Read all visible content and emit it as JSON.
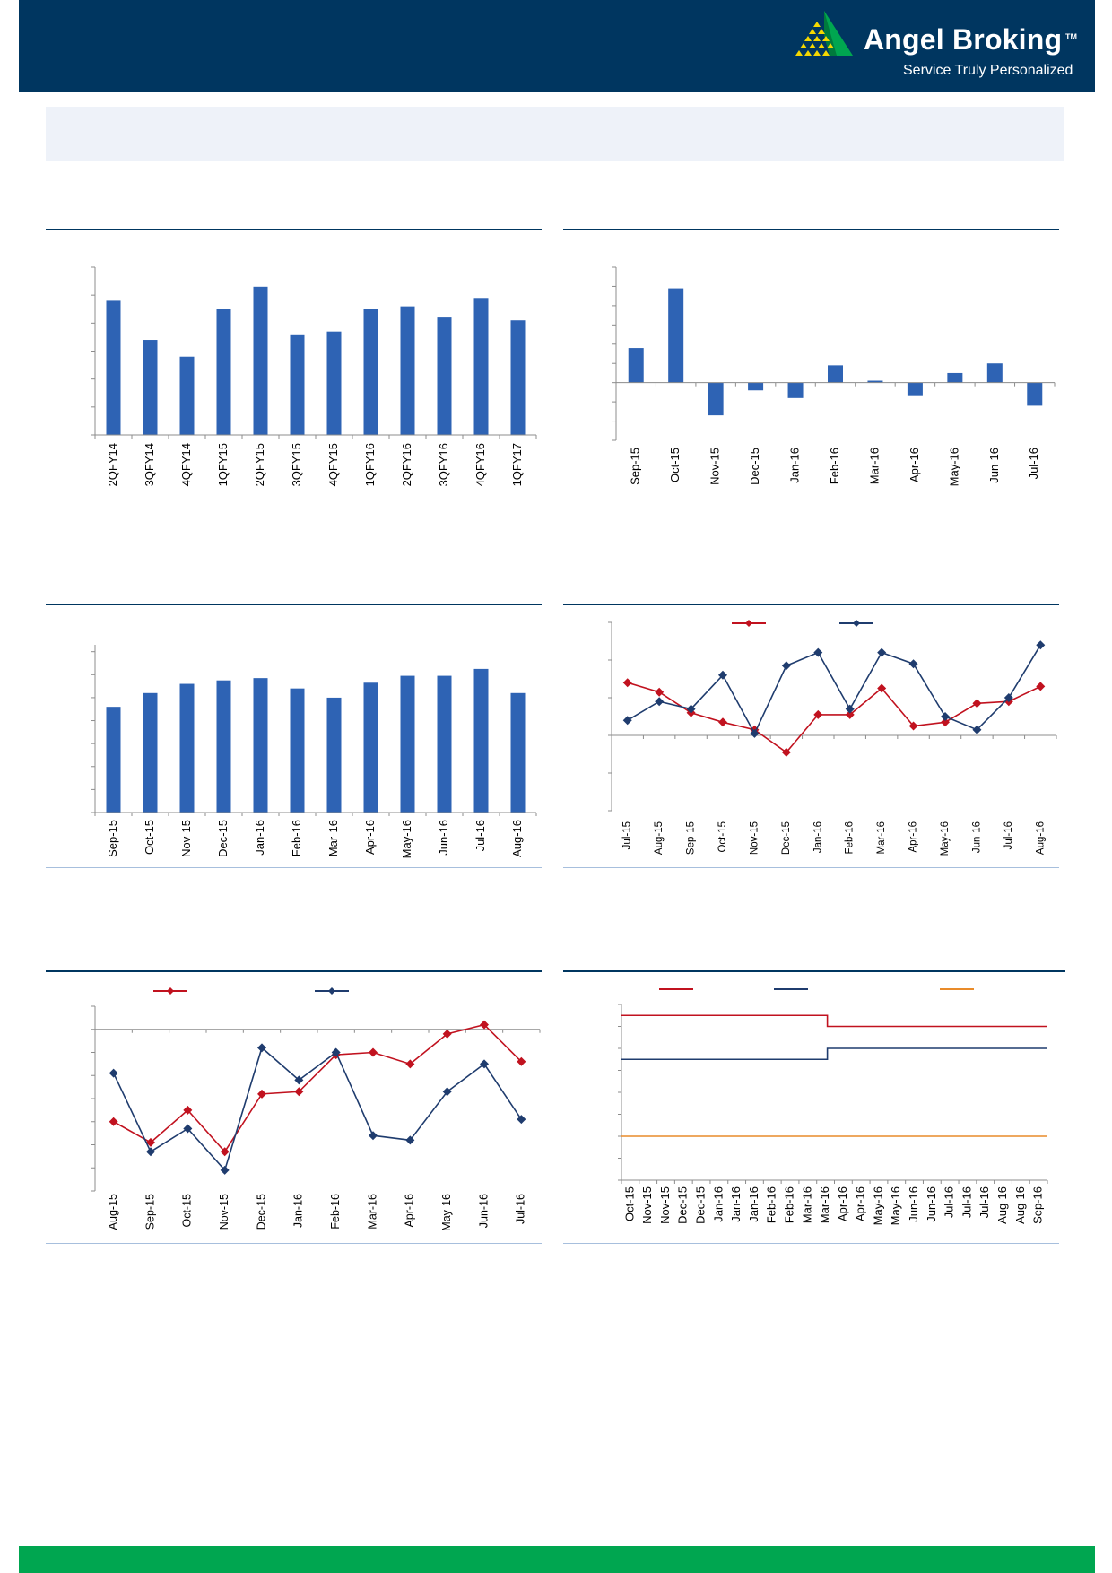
{
  "brand": {
    "name": "Angel Broking",
    "trademark": "TM",
    "tagline": "Service Truly Personalized",
    "colors": {
      "navy": "#003660",
      "green": "#00a650",
      "logo_yellow": "#f5d800",
      "logo_green": "#00a650"
    }
  },
  "colors": {
    "bar": "#2e63b4",
    "series_red": "#c1121f",
    "series_blue": "#1f3c6e",
    "series_orange": "#e98b2a",
    "panel_rule": "#003660",
    "panel_footer_rule": "#a7bfdd"
  },
  "chart_data": [
    {
      "id": "c1",
      "type": "bar",
      "categories": [
        "2QFY14",
        "3QFY14",
        "4QFY14",
        "1QFY15",
        "2QFY15",
        "3QFY15",
        "4QFY15",
        "1QFY16",
        "2QFY16",
        "3QFY16",
        "4QFY16",
        "1QFY17"
      ],
      "values": [
        4.8,
        3.4,
        2.8,
        4.5,
        5.3,
        3.6,
        3.7,
        4.5,
        4.6,
        4.2,
        4.9,
        4.1
      ],
      "ylim": [
        0,
        6
      ],
      "yticks": [
        0,
        1,
        2,
        3,
        4,
        5,
        6
      ],
      "tick_labels_shown": false,
      "grid": false
    },
    {
      "id": "c2",
      "type": "bar",
      "categories": [
        "Sep-15",
        "Oct-15",
        "Nov-15",
        "Dec-15",
        "Jan-16",
        "Feb-16",
        "Mar-16",
        "Apr-16",
        "May-16",
        "Jun-16",
        "Jul-16"
      ],
      "values": [
        1.8,
        4.9,
        -1.7,
        -0.4,
        -0.8,
        0.9,
        0.1,
        -0.7,
        0.5,
        1.0,
        -1.2
      ],
      "ylim": [
        -3,
        6
      ],
      "yticks": [
        -3,
        -2,
        -1,
        0,
        1,
        2,
        3,
        4,
        5,
        6
      ],
      "tick_labels_shown": false,
      "grid": false
    },
    {
      "id": "c3",
      "type": "bar",
      "categories": [
        "Sep-15",
        "Oct-15",
        "Nov-15",
        "Dec-15",
        "Jan-16",
        "Feb-16",
        "Mar-16",
        "Apr-16",
        "May-16",
        "Jun-16",
        "Jul-16",
        "Aug-16"
      ],
      "values": [
        4.6,
        5.2,
        5.6,
        5.75,
        5.85,
        5.4,
        5.0,
        5.65,
        5.95,
        5.95,
        6.25,
        5.2
      ],
      "ylim": [
        0,
        7.3
      ],
      "yticks": [
        0,
        1,
        2,
        3,
        4,
        5,
        6,
        7
      ],
      "tick_labels_shown": false,
      "grid": false
    },
    {
      "id": "c4",
      "type": "line",
      "x": [
        "Jul-15",
        "Aug-15",
        "Sep-15",
        "Oct-15",
        "Nov-15",
        "Dec-15",
        "Jan-16",
        "Feb-16",
        "Mar-16",
        "Apr-16",
        "May-16",
        "Jun-16",
        "Jul-16",
        "Aug-16"
      ],
      "series": [
        {
          "values": [
            2.8,
            2.3,
            1.2,
            0.7,
            0.3,
            -0.9,
            1.1,
            1.1,
            2.5,
            0.5,
            0.7,
            1.7,
            1.8,
            2.6
          ],
          "color": "#c1121f",
          "marker": "diamond"
        },
        {
          "values": [
            0.8,
            1.8,
            1.4,
            3.2,
            0.1,
            3.7,
            4.4,
            1.4,
            4.4,
            3.8,
            1.0,
            0.3,
            2.0,
            4.8
          ],
          "color": "#1f3c6e",
          "marker": "diamond"
        }
      ],
      "ylim": [
        -4,
        6
      ],
      "yticks": [
        -4,
        -2,
        0,
        2,
        4,
        6
      ],
      "tick_labels_shown": false,
      "legend": "top-center",
      "grid": false
    },
    {
      "id": "c5",
      "type": "line",
      "x": [
        "Aug-15",
        "Sep-15",
        "Oct-15",
        "Nov-15",
        "Dec-15",
        "Jan-16",
        "Feb-16",
        "Mar-16",
        "Apr-16",
        "May-16",
        "Jun-16",
        "Jul-16"
      ],
      "series": [
        {
          "values": [
            -4.0,
            -4.9,
            -3.5,
            -5.3,
            -2.8,
            -2.7,
            -1.1,
            -1.0,
            -1.5,
            -0.2,
            0.2,
            -1.4
          ],
          "color": "#c1121f",
          "marker": "diamond"
        },
        {
          "values": [
            -1.9,
            -5.3,
            -4.3,
            -6.1,
            -0.8,
            -2.2,
            -1.0,
            -4.6,
            -4.8,
            -2.7,
            -1.5,
            -3.9
          ],
          "color": "#1f3c6e",
          "marker": "diamond"
        }
      ],
      "ylim": [
        -7,
        1
      ],
      "yticks": [
        -7,
        -6,
        -5,
        -4,
        -3,
        -2,
        -1,
        0,
        1
      ],
      "tick_labels_shown": false,
      "legend": "top-center",
      "grid": false
    },
    {
      "id": "c6",
      "type": "line",
      "x": [
        "Oct-15",
        "Nov-15",
        "Nov-15",
        "Dec-15",
        "Dec-15",
        "Jan-16",
        "Jan-16",
        "Jan-16",
        "Feb-16",
        "Feb-16",
        "Mar-16",
        "Mar-16",
        "Apr-16",
        "Apr-16",
        "May-16",
        "May-16",
        "Jun-16",
        "Jun-16",
        "Jul-16",
        "Jul-16",
        "Jul-16",
        "Aug-16",
        "Aug-16",
        "Sep-16"
      ],
      "step_change_after_index": 11,
      "series": [
        {
          "values_before": 6.75,
          "values_after": 6.5,
          "color": "#c1121f"
        },
        {
          "values_before": 5.75,
          "values_after": 6.0,
          "color": "#1f3c6e"
        },
        {
          "values_before": 4.0,
          "values_after": 4.0,
          "color": "#e98b2a"
        }
      ],
      "ylim": [
        3.0,
        7.0
      ],
      "yticks": [
        3.0,
        3.5,
        4.0,
        4.5,
        5.0,
        5.5,
        6.0,
        6.5,
        7.0
      ],
      "tick_labels_shown": false,
      "legend": "top-center",
      "grid": false
    }
  ]
}
